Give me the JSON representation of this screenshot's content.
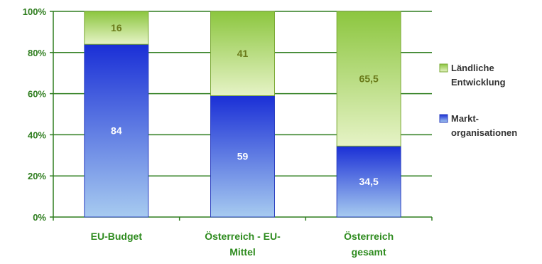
{
  "chart_data": {
    "type": "bar",
    "stacked": true,
    "percent": true,
    "categories": [
      [
        "EU-Budget"
      ],
      [
        "Österreich - EU-",
        "Mittel"
      ],
      [
        "Österreich",
        "gesamt"
      ]
    ],
    "series": [
      {
        "name": "Markt-organisationen",
        "legend_lines": [
          "Markt-",
          "organisationen"
        ],
        "values": [
          84,
          59,
          34.5
        ],
        "labels": [
          "84",
          "59",
          "34,5"
        ],
        "color_top": "#1a2fd6",
        "color_bottom": "#9ec4ee"
      },
      {
        "name": "Ländliche Entwicklung",
        "legend_lines": [
          "Ländliche",
          "Entwicklung"
        ],
        "values": [
          16,
          41,
          65.5
        ],
        "labels": [
          "16",
          "41",
          "65,5"
        ],
        "color_top": "#8cc63f",
        "color_bottom": "#e4f2c2"
      }
    ],
    "ylim": [
      0,
      100
    ],
    "yticks": [
      "0%",
      "20%",
      "40%",
      "60%",
      "80%",
      "100%"
    ],
    "grid": true,
    "legend_position": "right",
    "title": "",
    "xlabel": "",
    "ylabel": ""
  }
}
